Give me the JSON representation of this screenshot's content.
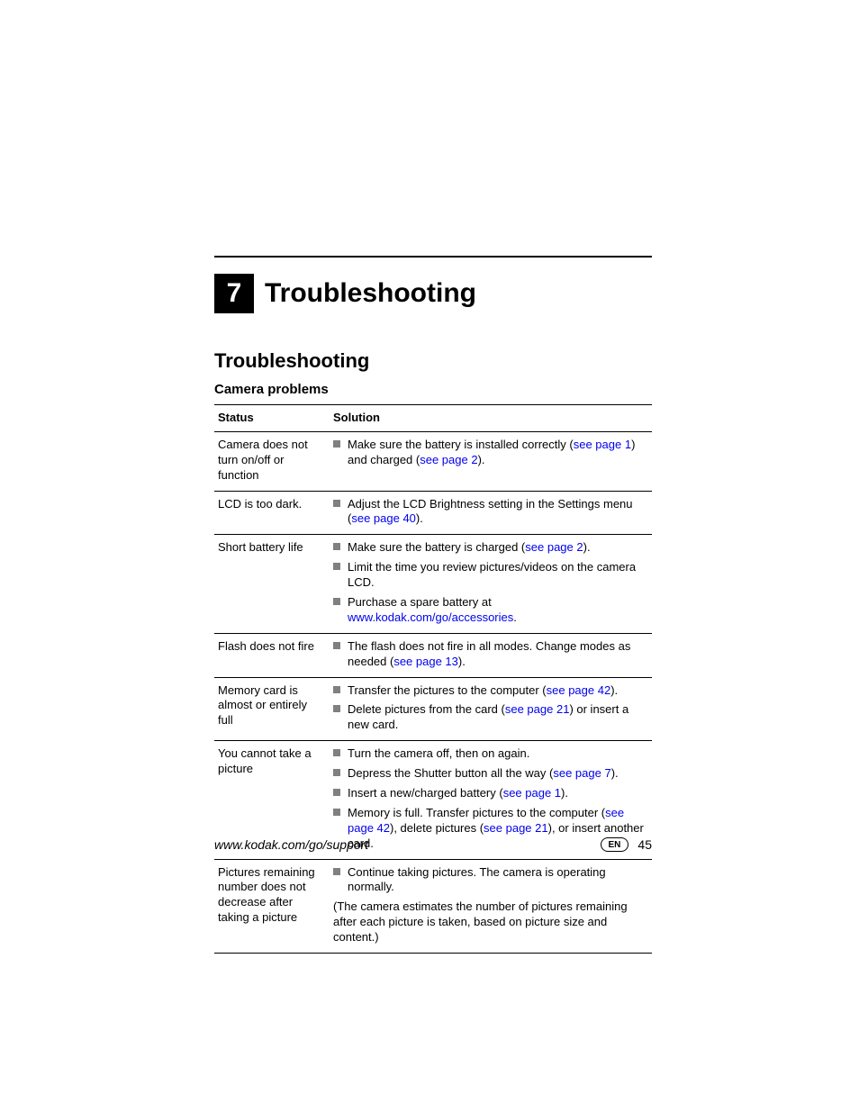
{
  "chapter": {
    "number": "7",
    "title": "Troubleshooting"
  },
  "section_title": "Troubleshooting",
  "subsection_title": "Camera problems",
  "table": {
    "header_status": "Status",
    "header_solution": "Solution"
  },
  "rows": {
    "r0": {
      "status": "Camera does not turn on/off or function",
      "s0_a": "Make sure the battery is installed correctly (",
      "s0_l1": "see page 1",
      "s0_b": ") and charged (",
      "s0_l2": "see page 2",
      "s0_c": ")."
    },
    "r1": {
      "status": "LCD is too dark.",
      "s0_a": "Adjust the LCD Brightness setting in the Settings menu (",
      "s0_l1": "see page 40",
      "s0_b": ")."
    },
    "r2": {
      "status": "Short battery life",
      "s0_a": "Make sure the battery is charged (",
      "s0_l1": "see page 2",
      "s0_b": ").",
      "s1": "Limit the time you review pictures/videos on the camera LCD.",
      "s2_a": "Purchase a spare battery at ",
      "s2_l1": "www.kodak.com/go/accessories",
      "s2_b": "."
    },
    "r3": {
      "status": "Flash does not fire",
      "s0_a": "The flash does not fire in all modes. Change modes as needed (",
      "s0_l1": "see page 13",
      "s0_b": ")."
    },
    "r4": {
      "status": "Memory card is almost or entirely full",
      "s0_a": "Transfer the pictures to the computer (",
      "s0_l1": "see page 42",
      "s0_b": ").",
      "s1_a": "Delete pictures from the card (",
      "s1_l1": "see page 21",
      "s1_b": ") or insert a new card."
    },
    "r5": {
      "status": "You cannot take a picture",
      "s0": "Turn the camera off, then on again.",
      "s1_a": "Depress the Shutter button all the way (",
      "s1_l1": "see page 7",
      "s1_b": ").",
      "s2_a": "Insert a new/charged battery (",
      "s2_l1": "see page 1",
      "s2_b": ").",
      "s3_a": "Memory is full. Transfer pictures to the computer (",
      "s3_l1": "see page 42",
      "s3_b": "), delete pictures (",
      "s3_l2": "see page 21",
      "s3_c": "), or insert another card."
    },
    "r6": {
      "status": "Pictures remaining number does not decrease after taking a picture",
      "s0": "Continue taking pictures. The camera is operating normally.",
      "note": "(The camera estimates the number of pictures remaining after each picture is taken, based on picture size and content.)"
    }
  },
  "footer": {
    "url": "www.kodak.com/go/support",
    "lang": "EN",
    "page_number": "45"
  },
  "colors": {
    "link": "#0000ee",
    "bullet": "#808080",
    "text": "#000000",
    "background": "#ffffff"
  }
}
